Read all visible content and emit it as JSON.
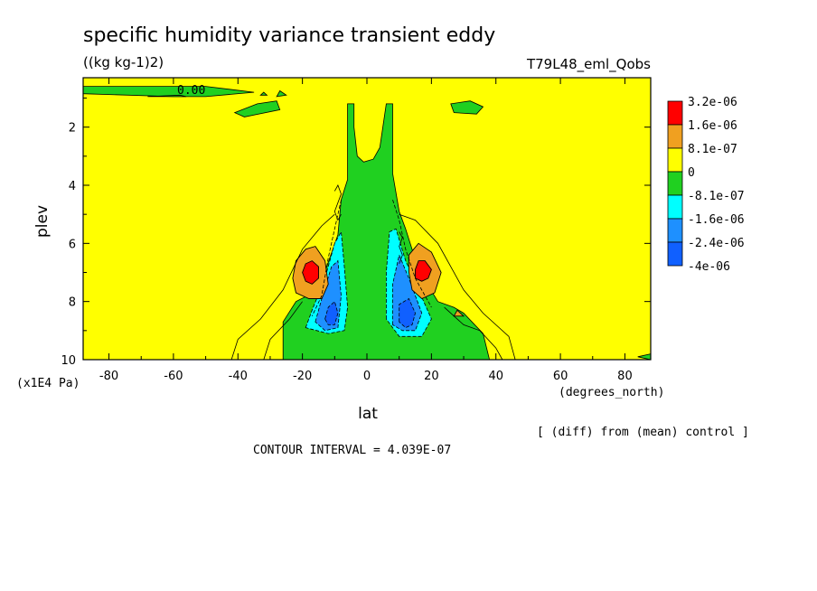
{
  "chart_data": {
    "type": "contour",
    "title": "specific humidity variance transient eddy",
    "units": "((kg kg-1)2)",
    "experiment": "T79L48_eml_Qobs",
    "xlabel": "lat",
    "x_units": "(degrees_north)",
    "ylabel": "plev",
    "y_units": "(x1E4 Pa)",
    "xlim": [
      -88,
      88
    ],
    "ylim": [
      10,
      0.3
    ],
    "x_ticks": [
      "-80",
      "-60",
      "-40",
      "-20",
      "0",
      "20",
      "40",
      "60",
      "80"
    ],
    "x_tick_values": [
      -80,
      -60,
      -40,
      -20,
      0,
      20,
      40,
      60,
      80
    ],
    "y_ticks": [
      "2",
      "4",
      "6",
      "8",
      "10"
    ],
    "y_tick_values": [
      2,
      4,
      6,
      8,
      10
    ],
    "contour_label": "0.00",
    "note": "[ (diff) from (mean) control ]",
    "contour_interval_text": "CONTOUR INTERVAL = 4.039E-07",
    "legend": [
      {
        "label": "3.2e-06",
        "color": "#ff0000"
      },
      {
        "label": "1.6e-06",
        "color": "#f0a020"
      },
      {
        "label": "8.1e-07",
        "color": "#f0a020"
      },
      {
        "label": "0",
        "color": "#ffff00"
      },
      {
        "label": "-8.1e-07",
        "color": "#20d020"
      },
      {
        "label": "-1.6e-06",
        "color": "#00ffff"
      },
      {
        "label": "-2.4e-06",
        "color": "#1e90ff"
      },
      {
        "label": "-4e-06",
        "color": "#1060ff"
      }
    ],
    "legend_swatches": [
      "#ff0000",
      "#f0a020",
      "#ffff00",
      "#20d020",
      "#00ffff",
      "#1e90ff",
      "#1060ff"
    ],
    "features": [
      {
        "name": "positive-max-south",
        "lat": -17,
        "plev": 7.0,
        "level": "3.2e-06"
      },
      {
        "name": "positive-max-north",
        "lat": 17,
        "plev": 7.0,
        "level": "3.2e-06"
      },
      {
        "name": "negative-min-south",
        "lat": -11,
        "plev": 8.5,
        "level": "-4e-06"
      },
      {
        "name": "negative-min-north",
        "lat": 13,
        "plev": 8.5,
        "level": "-4e-06"
      }
    ]
  }
}
